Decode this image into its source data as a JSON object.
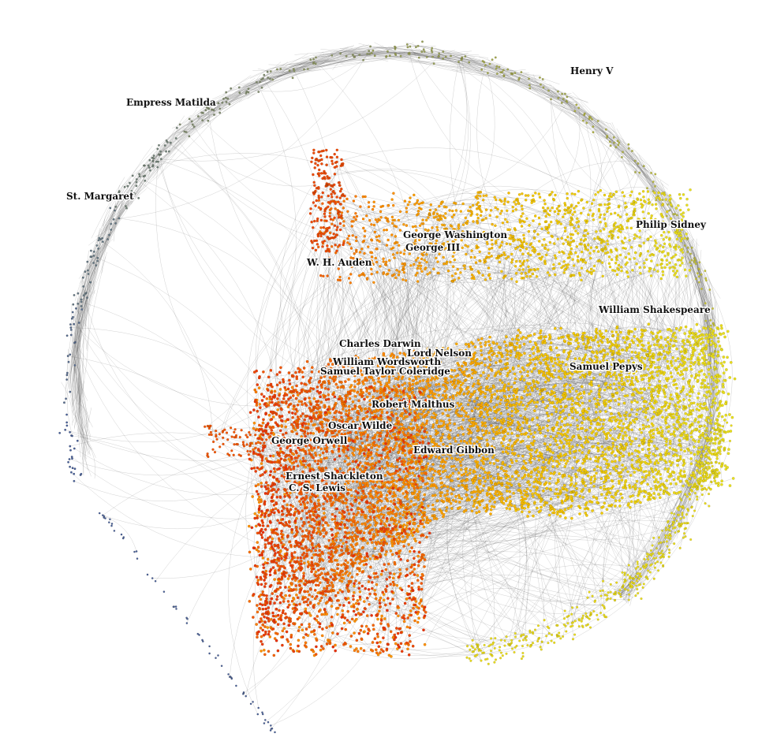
{
  "network": {
    "labels": [
      {
        "id": "henry-v",
        "text": "Henry V"
      },
      {
        "id": "empress-matilda",
        "text": "Empress Matilda"
      },
      {
        "id": "st-margaret",
        "text": "St. Margaret"
      },
      {
        "id": "george-washington",
        "text": "George Washington"
      },
      {
        "id": "george-iii",
        "text": "George III"
      },
      {
        "id": "philip-sidney",
        "text": "Philip Sidney"
      },
      {
        "id": "w-h-auden",
        "text": "W. H. Auden"
      },
      {
        "id": "william-shakespeare",
        "text": "William Shakespeare"
      },
      {
        "id": "charles-darwin",
        "text": "Charles Darwin"
      },
      {
        "id": "lord-nelson",
        "text": "Lord Nelson"
      },
      {
        "id": "william-wordsworth",
        "text": "William Wordsworth"
      },
      {
        "id": "samuel-taylor-coleridge",
        "text": "Samuel Taylor Coleridge"
      },
      {
        "id": "samuel-pepys",
        "text": "Samuel Pepys"
      },
      {
        "id": "robert-malthus",
        "text": "Robert Malthus"
      },
      {
        "id": "oscar-wilde",
        "text": "Oscar Wilde"
      },
      {
        "id": "george-orwell",
        "text": "George Orwell"
      },
      {
        "id": "edward-gibbon",
        "text": "Edward Gibbon"
      },
      {
        "id": "ernest-shackleton",
        "text": "Ernest Shackleton"
      },
      {
        "id": "c-s-lewis",
        "text": "C. S. Lewis"
      }
    ],
    "colors": {
      "oldest": "#3a55a5",
      "arc_mid": "#9aa35a",
      "early": "#e8e020",
      "mid": "#f5c400",
      "late": "#ff8a00",
      "latest": "#e8300a",
      "edges": "#444444"
    }
  }
}
